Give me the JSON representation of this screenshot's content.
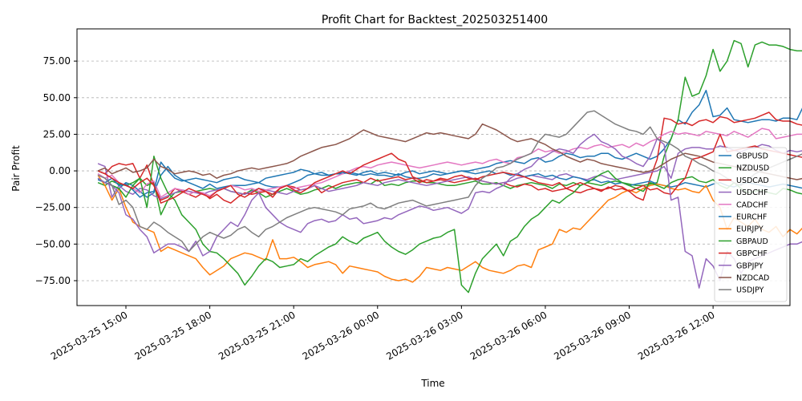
{
  "chart_data": {
    "type": "line",
    "title": "Profit Chart for Backtest_202503251400",
    "xlabel": "Time",
    "ylabel": "Pair Profit",
    "x_start": "2025-03-25 14:00",
    "x_step_minutes": 15,
    "xlim": [
      "2025-03-25 13:15",
      "2025-03-26 14:45"
    ],
    "ylim": [
      -92,
      97
    ],
    "y_ticks": [
      -75,
      -50,
      -25,
      0,
      25,
      50,
      75
    ],
    "y_tick_labels": [
      "−75.00",
      "−50.00",
      "−25.00",
      "0.00",
      "25.00",
      "50.00",
      "75.00"
    ],
    "x_ticks": [
      "2025-03-25 15:00",
      "2025-03-25 18:00",
      "2025-03-25 21:00",
      "2025-03-26 00:00",
      "2025-03-26 03:00",
      "2025-03-26 06:00",
      "2025-03-26 09:00",
      "2025-03-26 12:00"
    ],
    "x_tick_labels": [
      "2025-03-25 15:00",
      "2025-03-25 18:00",
      "2025-03-25 21:00",
      "2025-03-26 00:00",
      "2025-03-26 03:00",
      "2025-03-26 06:00",
      "2025-03-26 09:00",
      "2025-03-26 12:00"
    ],
    "grid": "y-dashed",
    "legend_position": "right",
    "series": [
      {
        "name": "GBPUSD",
        "color": "#1f77b4",
        "values": [
          -2,
          -5,
          -10,
          -12,
          -8,
          -10,
          -14,
          -18,
          -15,
          -3,
          3,
          -3,
          -6,
          -8,
          -10,
          -12,
          -9,
          -12,
          -11,
          -10,
          -10,
          -10,
          -9,
          -8,
          -10,
          -11,
          -11,
          -10,
          -8,
          -6,
          -3,
          -2,
          -3,
          -3,
          -2,
          -2,
          -1,
          -2,
          -3,
          -2,
          -3,
          -3,
          -4,
          -2,
          -4,
          -5,
          -5,
          -4,
          -2,
          -3,
          -2,
          -1,
          0,
          0,
          1,
          2,
          3,
          5,
          6,
          7,
          6,
          5,
          8,
          9,
          6,
          7,
          10,
          12,
          11,
          9,
          10,
          10,
          12,
          12,
          9,
          8,
          10,
          12,
          10,
          8,
          10,
          15,
          22,
          35,
          32,
          40,
          45,
          55,
          37,
          38,
          43,
          35,
          34,
          33,
          34,
          35,
          35,
          34,
          36,
          36,
          35,
          45
        ]
      },
      {
        "name": "NZDUSD",
        "color": "#2ca02c",
        "values": [
          -8,
          -10,
          -7,
          -9,
          -10,
          -8,
          -5,
          -10,
          -8,
          -30,
          -20,
          -15,
          -14,
          -16,
          -14,
          -13,
          -12,
          -13,
          -12,
          -14,
          -15,
          -16,
          -13,
          -15,
          -18,
          -16,
          -14,
          -12,
          -14,
          -16,
          -15,
          -13,
          -12,
          -10,
          -12,
          -10,
          -9,
          -8,
          -8,
          -9,
          -6,
          -10,
          -9,
          -10,
          -8,
          -7,
          -7,
          -8,
          -8,
          -9,
          -10,
          -10,
          -9,
          -8,
          -7,
          -9,
          -9,
          -8,
          -10,
          -12,
          -10,
          -9,
          -8,
          -9,
          -10,
          -12,
          -9,
          -10,
          -8,
          -10,
          -8,
          -9,
          -10,
          -8,
          -7,
          -8,
          -9,
          -10,
          -10,
          -9,
          -8,
          10,
          22,
          35,
          64,
          51,
          53,
          65,
          83,
          68,
          75,
          89,
          87,
          71,
          86,
          88,
          86,
          86,
          85,
          83,
          82,
          82
        ]
      },
      {
        "name": "USDCAD",
        "color": "#d62728",
        "values": [
          0,
          -2,
          3,
          5,
          4,
          5,
          -5,
          4,
          -10,
          -20,
          -18,
          -12,
          -14,
          -16,
          -18,
          -15,
          -19,
          -16,
          -20,
          -22,
          -18,
          -15,
          -16,
          -15,
          -14,
          -18,
          -12,
          -10,
          -11,
          -13,
          -12,
          -10,
          -15,
          -12,
          -10,
          -8,
          -7,
          -6,
          -8,
          -5,
          -7,
          -6,
          -5,
          -4,
          -6,
          -5,
          -8,
          -6,
          -7,
          -6,
          -7,
          -8,
          -7,
          -6,
          -5,
          -7,
          -8,
          -9,
          -8,
          -10,
          -11,
          -9,
          -10,
          -13,
          -12,
          -14,
          -13,
          -12,
          -14,
          -15,
          -13,
          -12,
          -14,
          -11,
          -13,
          -12,
          -14,
          -18,
          -20,
          -5,
          8,
          36,
          35,
          32,
          33,
          31,
          34,
          35,
          33,
          37,
          36,
          33,
          34,
          35,
          36,
          38,
          40,
          35,
          34,
          34,
          32,
          31
        ]
      },
      {
        "name": "USDCHF",
        "color": "#9467bd",
        "values": [
          5,
          3,
          -18,
          -10,
          -14,
          -16,
          -12,
          -13,
          -17,
          -19,
          -17,
          -15,
          -13,
          -14,
          -15,
          -16,
          -14,
          -13,
          -12,
          -14,
          -15,
          -16,
          -14,
          -12,
          -13,
          -14,
          -15,
          -16,
          -14,
          -13,
          -12,
          -10,
          -12,
          -14,
          -13,
          -12,
          -11,
          -10,
          -8,
          -9,
          -10,
          -8,
          -7,
          -6,
          -7,
          -8,
          -9,
          -10,
          -9,
          -8,
          -7,
          -6,
          -5,
          -4,
          -6,
          -7,
          -8,
          -9,
          -8,
          -7,
          -5,
          -4,
          -3,
          -4,
          -5,
          -6,
          -3,
          -2,
          -4,
          -5,
          -6,
          -4,
          -3,
          -5,
          -6,
          -5,
          -4,
          -3,
          -2,
          -1,
          0,
          3,
          -5,
          12,
          15,
          16,
          16,
          15,
          15,
          17,
          16,
          14,
          13,
          15,
          16,
          18,
          17,
          14,
          12,
          14,
          13,
          14
        ]
      },
      {
        "name": "CADCHF",
        "color": "#e377c2",
        "values": [
          -2,
          -5,
          -3,
          -8,
          -10,
          -12,
          -15,
          -9,
          -7,
          -18,
          -15,
          -12,
          -13,
          -16,
          -14,
          -15,
          -17,
          -14,
          -12,
          -10,
          -11,
          -13,
          -12,
          -14,
          -13,
          -12,
          -11,
          -10,
          -12,
          -11,
          -10,
          -9,
          -8,
          -6,
          -4,
          -2,
          0,
          2,
          3,
          2,
          4,
          5,
          6,
          5,
          4,
          3,
          2,
          3,
          4,
          5,
          6,
          5,
          4,
          5,
          6,
          5,
          7,
          8,
          6,
          5,
          9,
          10,
          12,
          15,
          13,
          14,
          12,
          13,
          15,
          16,
          15,
          17,
          18,
          16,
          17,
          18,
          16,
          19,
          17,
          20,
          22,
          25,
          27,
          25,
          26,
          25,
          24,
          27,
          26,
          25,
          24,
          27,
          25,
          23,
          26,
          29,
          28,
          22,
          23,
          24,
          25,
          25
        ]
      },
      {
        "name": "EURCHF",
        "color": "#1f77b4",
        "values": [
          -6,
          -8,
          -5,
          -10,
          -9,
          -13,
          -18,
          -15,
          -14,
          6,
          0,
          -5,
          -7,
          -6,
          -5,
          -6,
          -7,
          -8,
          -6,
          -5,
          -4,
          -6,
          -7,
          -8,
          -5,
          -4,
          -3,
          -2,
          -1,
          1,
          0,
          -2,
          -1,
          -3,
          -2,
          -1,
          -2,
          -3,
          -1,
          0,
          -2,
          -1,
          -2,
          -3,
          -1,
          0,
          -2,
          -1,
          0,
          -1,
          -2,
          -1,
          0,
          -1,
          -2,
          -1,
          0,
          -2,
          -1,
          -3,
          -2,
          -4,
          -3,
          -2,
          -4,
          -3,
          -5,
          -6,
          -4,
          -5,
          -7,
          -6,
          -8,
          -7,
          -9,
          -8,
          -10,
          -9,
          -8,
          -7,
          -9,
          -10,
          -11,
          -10,
          -8,
          -9,
          -10,
          -11,
          -9,
          -8,
          -10,
          -11,
          -9,
          -8,
          -9,
          -10,
          -11,
          -10,
          -9,
          -10,
          -11,
          -12
        ]
      },
      {
        "name": "EURJPY",
        "color": "#ff7f0e",
        "values": [
          -3,
          -10,
          -20,
          -12,
          -25,
          -35,
          -38,
          -40,
          -42,
          -55,
          -52,
          -54,
          -56,
          -58,
          -60,
          -66,
          -71,
          -68,
          -65,
          -60,
          -58,
          -56,
          -57,
          -59,
          -61,
          -47,
          -60,
          -60,
          -59,
          -62,
          -66,
          -64,
          -63,
          -62,
          -64,
          -70,
          -65,
          -66,
          -67,
          -68,
          -69,
          -72,
          -74,
          -75,
          -74,
          -76,
          -72,
          -66,
          -67,
          -68,
          -66,
          -67,
          -68,
          -65,
          -62,
          -66,
          -68,
          -69,
          -70,
          -68,
          -65,
          -64,
          -66,
          -54,
          -52,
          -50,
          -40,
          -42,
          -39,
          -40,
          -35,
          -30,
          -25,
          -20,
          -18,
          -15,
          -13,
          -15,
          -12,
          -10,
          -9,
          -10,
          -12,
          -13,
          -12,
          -14,
          -15,
          -10,
          -20,
          -25,
          -40,
          -32,
          -35,
          -38,
          -33,
          -40,
          -42,
          -38,
          -45,
          -40,
          -43,
          -38
        ]
      },
      {
        "name": "GBPAUD",
        "color": "#2ca02c",
        "values": [
          -5,
          -8,
          -10,
          -12,
          -18,
          -10,
          -5,
          -25,
          10,
          -5,
          -15,
          -20,
          -30,
          -35,
          -40,
          -50,
          -55,
          -56,
          -60,
          -65,
          -70,
          -78,
          -72,
          -65,
          -60,
          -62,
          -66,
          -65,
          -64,
          -60,
          -62,
          -58,
          -55,
          -52,
          -50,
          -45,
          -48,
          -50,
          -46,
          -44,
          -42,
          -48,
          -52,
          -55,
          -57,
          -54,
          -50,
          -48,
          -46,
          -45,
          -42,
          -40,
          -78,
          -83,
          -70,
          -60,
          -55,
          -50,
          -58,
          -48,
          -45,
          -38,
          -33,
          -30,
          -25,
          -20,
          -22,
          -18,
          -15,
          -10,
          -8,
          -5,
          -2,
          0,
          -5,
          -8,
          -10,
          -12,
          -14,
          -8,
          -10,
          -12,
          -8,
          -6,
          -5,
          -4,
          -7,
          -8,
          -6,
          -10,
          -12,
          -8,
          -12,
          -15,
          -14,
          -13,
          -15,
          -16,
          -12,
          -13,
          -15,
          -16
        ]
      },
      {
        "name": "GBPCHF",
        "color": "#d62728",
        "values": [
          0,
          -2,
          -5,
          -8,
          -10,
          -12,
          -8,
          -5,
          -10,
          -22,
          -20,
          -18,
          -15,
          -12,
          -14,
          -16,
          -18,
          -14,
          -12,
          -10,
          -16,
          -18,
          -15,
          -12,
          -14,
          -16,
          -12,
          -10,
          -13,
          -15,
          -12,
          -8,
          -6,
          -4,
          -2,
          0,
          -2,
          1,
          4,
          6,
          8,
          10,
          12,
          8,
          6,
          -4,
          -6,
          -8,
          -7,
          -5,
          -6,
          -4,
          -3,
          -5,
          -6,
          -4,
          -3,
          -2,
          -1,
          -2,
          -3,
          -4,
          -6,
          -8,
          -9,
          -10,
          -8,
          -12,
          -10,
          -8,
          -10,
          -12,
          -13,
          -12,
          -10,
          -11,
          -14,
          -12,
          -10,
          -13,
          -12,
          -15,
          -16,
          -10,
          -5,
          8,
          9,
          11,
          13,
          25,
          13,
          14,
          15,
          16,
          17,
          15,
          14,
          13,
          12,
          11,
          10,
          9
        ]
      },
      {
        "name": "GBPJPY",
        "color": "#9467bd",
        "values": [
          -5,
          -8,
          -10,
          -15,
          -30,
          -33,
          -40,
          -45,
          -56,
          -53,
          -50,
          -50,
          -52,
          -55,
          -48,
          -58,
          -55,
          -45,
          -40,
          -35,
          -38,
          -30,
          -20,
          -15,
          -25,
          -30,
          -35,
          -38,
          -40,
          -42,
          -36,
          -34,
          -33,
          -35,
          -34,
          -30,
          -33,
          -32,
          -36,
          -35,
          -34,
          -32,
          -33,
          -30,
          -28,
          -26,
          -24,
          -25,
          -27,
          -26,
          -25,
          -27,
          -29,
          -26,
          -15,
          -14,
          -15,
          -12,
          -10,
          -5,
          -2,
          1,
          3,
          8,
          10,
          13,
          15,
          14,
          12,
          18,
          22,
          25,
          20,
          18,
          15,
          10,
          8,
          5,
          3,
          10,
          22,
          18,
          -20,
          -18,
          -55,
          -58,
          -80,
          -60,
          -65,
          -75,
          -55,
          -60,
          -70,
          -62,
          -60,
          -58,
          -56,
          -54,
          -52,
          -50,
          -50,
          -48
        ]
      },
      {
        "name": "NZDCAD",
        "color": "#8c564b",
        "values": [
          0,
          2,
          -2,
          0,
          2,
          -1,
          0,
          2,
          8,
          3,
          1,
          -2,
          -1,
          0,
          -1,
          -3,
          -2,
          -5,
          -3,
          -2,
          0,
          1,
          2,
          1,
          2,
          3,
          4,
          5,
          7,
          10,
          12,
          14,
          16,
          17,
          18,
          20,
          22,
          25,
          28,
          26,
          24,
          23,
          22,
          21,
          20,
          22,
          24,
          26,
          25,
          26,
          25,
          24,
          23,
          22,
          25,
          32,
          30,
          28,
          25,
          22,
          20,
          21,
          22,
          20,
          18,
          15,
          13,
          10,
          8,
          6,
          8,
          7,
          5,
          4,
          3,
          2,
          1,
          0,
          -1,
          0,
          2,
          5,
          8,
          10,
          12,
          11,
          10,
          8,
          6,
          5,
          4,
          3,
          2,
          1,
          0,
          -1,
          -2,
          -3,
          -4,
          -5,
          -6,
          -5
        ]
      },
      {
        "name": "USDJPY",
        "color": "#7f7f7f",
        "values": [
          -3,
          -5,
          -10,
          -23,
          -20,
          -25,
          -38,
          -40,
          -35,
          -38,
          -42,
          -45,
          -48,
          -55,
          -50,
          -45,
          -42,
          -44,
          -46,
          -44,
          -40,
          -38,
          -42,
          -45,
          -40,
          -38,
          -35,
          -32,
          -30,
          -28,
          -26,
          -25,
          -26,
          -27,
          -28,
          -30,
          -26,
          -25,
          -24,
          -22,
          -25,
          -26,
          -24,
          -22,
          -21,
          -20,
          -22,
          -24,
          -23,
          -22,
          -21,
          -20,
          -19,
          -18,
          -10,
          -5,
          -2,
          2,
          3,
          5,
          8,
          10,
          12,
          20,
          25,
          24,
          23,
          25,
          30,
          35,
          40,
          41,
          38,
          35,
          32,
          30,
          28,
          27,
          25,
          30,
          22,
          20,
          18,
          15,
          10,
          8,
          5,
          3,
          0,
          -2,
          -5,
          -8,
          -10,
          -6,
          -2,
          0,
          2,
          4,
          6,
          8,
          10,
          12
        ]
      }
    ]
  }
}
